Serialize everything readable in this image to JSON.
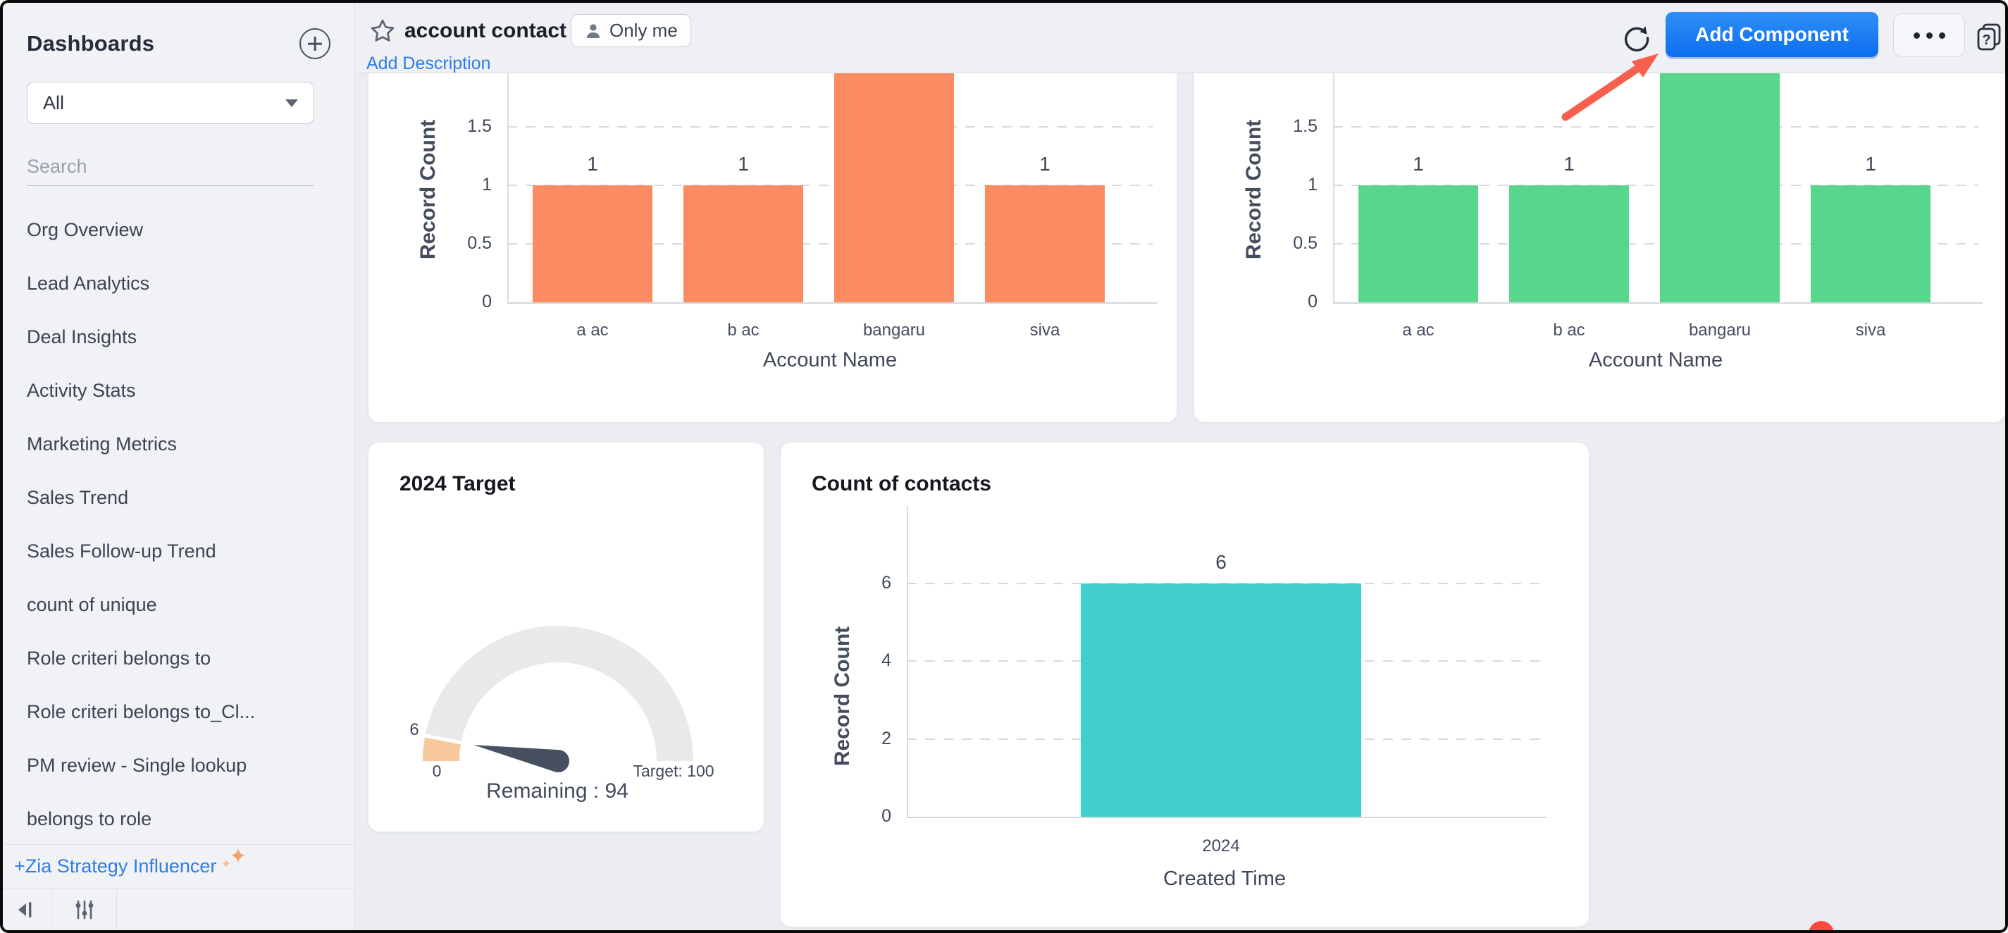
{
  "sidebar": {
    "title": "Dashboards",
    "filter_value": "All",
    "search_placeholder": "Search",
    "items": [
      "Org Overview",
      "Lead Analytics",
      "Deal Insights",
      "Activity Stats",
      "Marketing Metrics",
      "Sales Trend",
      "Sales Follow-up Trend",
      "count of unique",
      "Role criteri belongs to",
      "Role criteri belongs to_Cl...",
      "PM review - Single lookup",
      "belongs to role"
    ],
    "zia_link": "+Zia Strategy Influencer"
  },
  "header": {
    "title": "account contact",
    "visibility_badge": "Only me",
    "add_description_link": "Add Description",
    "add_component_button": "Add Component"
  },
  "colors": {
    "accent_blue": "#1d7ff2",
    "link_blue": "#2e7ce8",
    "orange_bar": "#fb8b61",
    "green_bar": "#57d68c",
    "teal_bar": "#41cfcd",
    "gauge_fill": "#f8c89d",
    "gauge_track": "#e9e9ec",
    "annotation_red": "#f7604d"
  },
  "chart_data": [
    {
      "type": "bar",
      "title": "",
      "categories": [
        "a ac",
        "b ac",
        "bangaru",
        "siva"
      ],
      "values": [
        1,
        1,
        2,
        1
      ],
      "xlabel": "Account Name",
      "ylabel": "Record Count",
      "yticks": [
        "0",
        "0.5",
        "1",
        "1.5"
      ],
      "ylim": [
        0,
        2
      ],
      "grid": "dashed",
      "color": "#fb8b61"
    },
    {
      "type": "bar",
      "title": "",
      "categories": [
        "a ac",
        "b ac",
        "bangaru",
        "siva"
      ],
      "values": [
        1,
        1,
        2,
        1
      ],
      "xlabel": "Account Name",
      "ylabel": "Record Count",
      "yticks": [
        "0",
        "0.5",
        "1",
        "1.5"
      ],
      "ylim": [
        0,
        2
      ],
      "grid": "dashed",
      "color": "#57d68c"
    },
    {
      "type": "gauge",
      "title": "2024 Target",
      "value": 6,
      "target": 100,
      "value_label": "6",
      "min_label": "0",
      "target_label": "Target: 100",
      "remaining_label": "Remaining : 94",
      "fill_color": "#f8c89d",
      "track_color": "#e9e9ec",
      "needle_color": "#475061"
    },
    {
      "type": "bar",
      "title": "Count of contacts",
      "categories": [
        "2024"
      ],
      "values": [
        6
      ],
      "xlabel": "Created Time",
      "ylabel": "Record Count",
      "yticks": [
        "0",
        "2",
        "4",
        "6"
      ],
      "ylim": [
        0,
        7
      ],
      "grid": "dashed",
      "color": "#41cfcd"
    }
  ]
}
